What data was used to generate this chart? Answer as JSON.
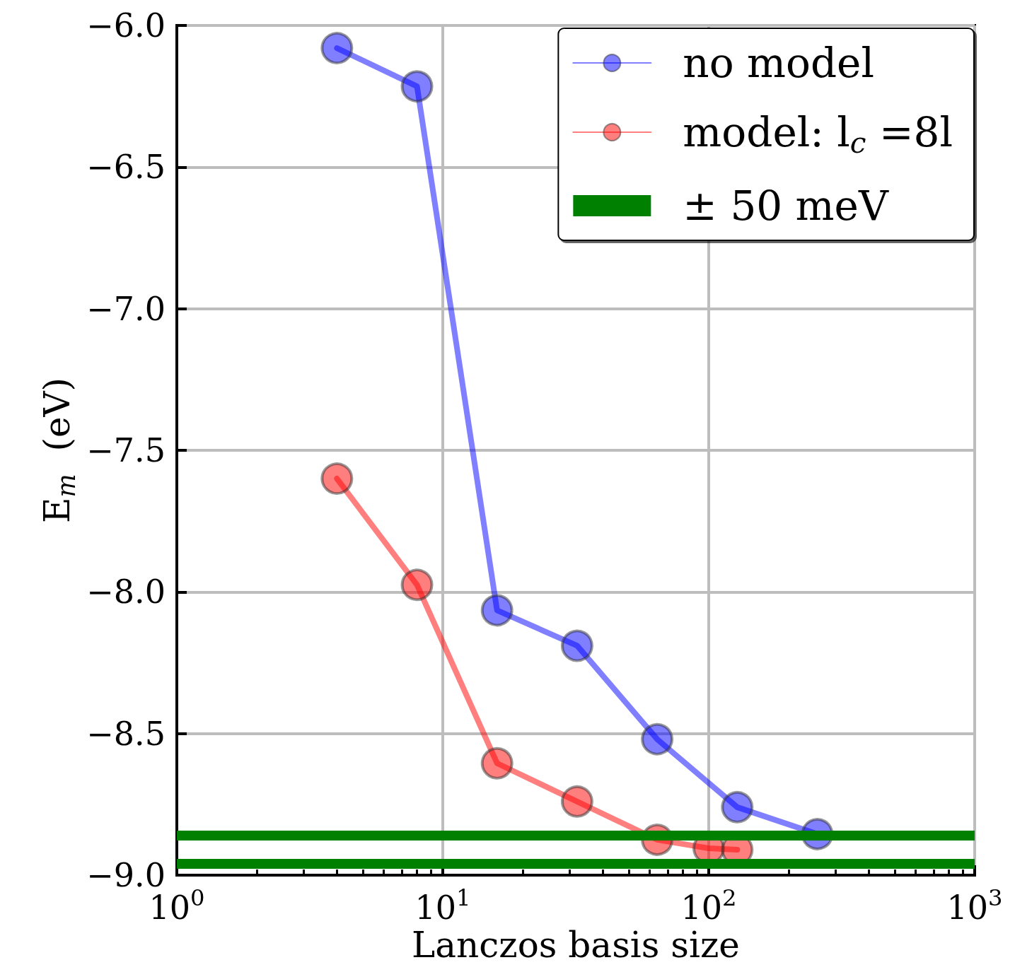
{
  "chart_data": {
    "type": "line",
    "xlabel": "Lanczos basis size",
    "ylabel": "E$_{m}$  (eV)",
    "log": "x",
    "xlim": [
      1,
      1000
    ],
    "xticks": [
      {
        "value": 1,
        "label": "10$^{0}$"
      },
      {
        "value": 10,
        "label": "10$^{1}$"
      },
      {
        "value": 100,
        "label": "10$^{2}$"
      },
      {
        "value": 1000,
        "label": "10$^{3}$"
      }
    ],
    "ylim": [
      -9.0,
      -6.0
    ],
    "yticks": [
      {
        "value": -9.0,
        "label": "−9.0"
      },
      {
        "value": -8.5,
        "label": "−8.5"
      },
      {
        "value": -8.0,
        "label": "−8.0"
      },
      {
        "value": -7.5,
        "label": "−7.5"
      },
      {
        "value": -7.0,
        "label": "−7.0"
      },
      {
        "value": -6.5,
        "label": "−6.5"
      },
      {
        "value": -6.0,
        "label": "−6.0"
      }
    ],
    "grid": true,
    "legend": "top right",
    "marker": "circle",
    "line_style": "solid",
    "series": [
      {
        "name": "no model",
        "color": "#0000ff",
        "x": [
          4,
          8,
          16,
          32,
          64,
          128,
          256
        ],
        "values": [
          -6.08,
          -6.215,
          -8.065,
          -8.19,
          -8.52,
          -8.76,
          -8.855
        ]
      },
      {
        "name": "model: l$_{c}$ =8l",
        "color": "#ff0000",
        "x": [
          4,
          8,
          16,
          32,
          64,
          100,
          128
        ],
        "values": [
          -7.6,
          -7.975,
          -8.605,
          -8.74,
          -8.875,
          -8.905,
          -8.91
        ]
      }
    ],
    "ref_lines": [
      {
        "axis": "y",
        "value": -8.86,
        "label": "± 50 meV",
        "color": "#008000"
      },
      {
        "axis": "y",
        "value": -8.96,
        "color": "#008000"
      }
    ]
  }
}
